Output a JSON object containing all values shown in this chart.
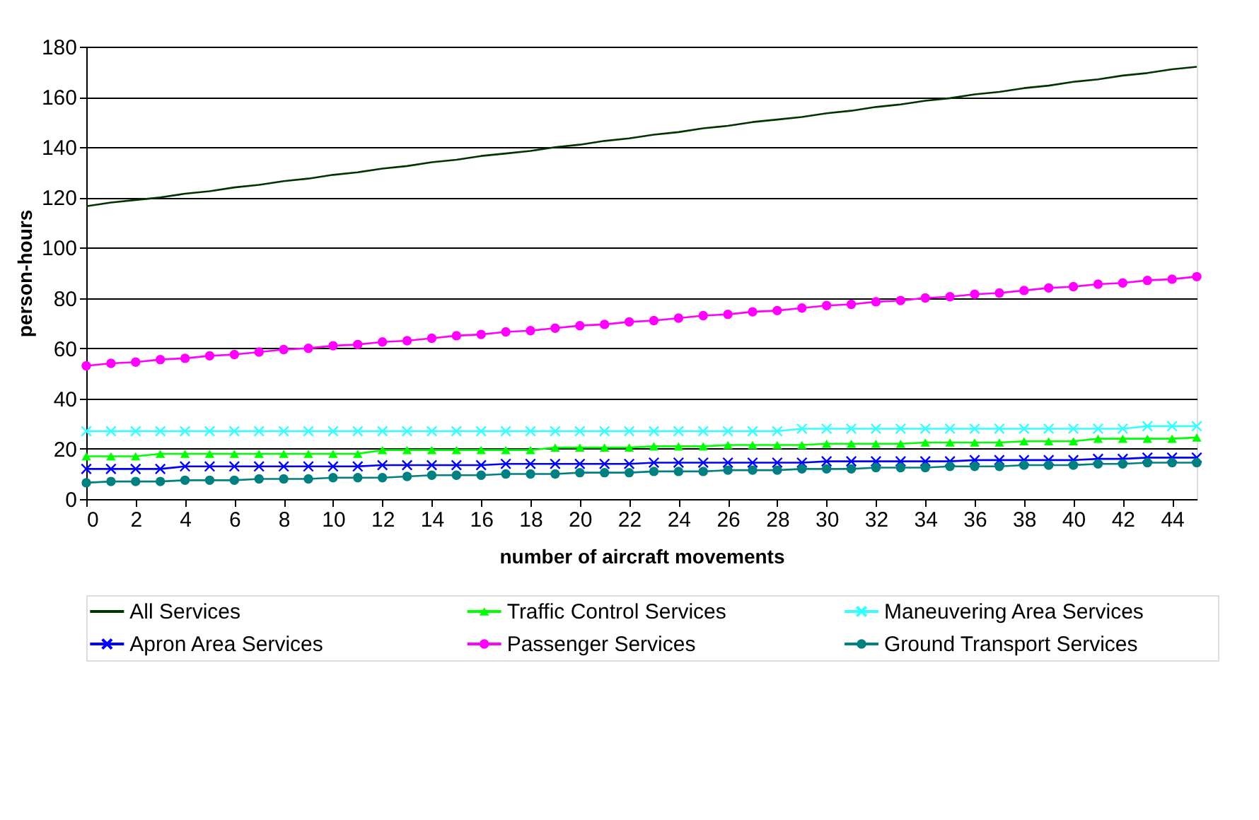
{
  "chart_data": {
    "type": "line",
    "xlabel": "number of aircraft movements",
    "ylabel": "person-hours",
    "x": [
      0,
      1,
      2,
      3,
      4,
      5,
      6,
      7,
      8,
      9,
      10,
      11,
      12,
      13,
      14,
      15,
      16,
      17,
      18,
      19,
      20,
      21,
      22,
      23,
      24,
      25,
      26,
      27,
      28,
      29,
      30,
      31,
      32,
      33,
      34,
      35,
      36,
      37,
      38,
      39,
      40,
      41,
      42,
      43,
      44,
      45
    ],
    "xlim": [
      0,
      45
    ],
    "xticks": [
      0,
      2,
      4,
      6,
      8,
      10,
      12,
      14,
      16,
      18,
      20,
      22,
      24,
      26,
      28,
      30,
      32,
      34,
      36,
      38,
      40,
      42,
      44
    ],
    "ylim": [
      0,
      180
    ],
    "yticks": [
      0,
      20,
      40,
      60,
      80,
      100,
      120,
      140,
      160,
      180
    ],
    "grid": "y",
    "legend": "bottom",
    "line_style": "solid",
    "series": [
      {
        "name": "All Services",
        "color": "#003300",
        "marker": "none",
        "values": [
          116.5,
          118,
          119,
          120,
          121.5,
          122.5,
          124,
          125,
          126.5,
          127.5,
          129,
          130,
          131.5,
          132.5,
          134,
          135,
          136.5,
          137.5,
          138.5,
          140,
          141,
          142.5,
          143.5,
          145,
          146,
          147.5,
          148.5,
          150,
          151,
          152,
          153.5,
          154.5,
          156,
          157,
          158.5,
          159.5,
          161,
          162,
          163.5,
          164.5,
          166,
          167,
          168.5,
          169.5,
          171,
          172
        ]
      },
      {
        "name": "Traffic Control Services",
        "color": "#00ff00",
        "marker": "triangle",
        "values": [
          17,
          17,
          17,
          18,
          18,
          18,
          18,
          18,
          18,
          18,
          18,
          18,
          19.5,
          19.5,
          19.5,
          19.5,
          19.5,
          19.5,
          19.5,
          20.5,
          20.5,
          20.5,
          20.5,
          21,
          21,
          21,
          21.5,
          21.5,
          21.5,
          21.5,
          22,
          22,
          22,
          22,
          22.5,
          22.5,
          22.5,
          22.5,
          23,
          23,
          23,
          24,
          24,
          24,
          24,
          24.5
        ]
      },
      {
        "name": "Maneuvering Area Services",
        "color": "#33ffff",
        "marker": "cross",
        "values": [
          27,
          27,
          27,
          27,
          27,
          27,
          27,
          27,
          27,
          27,
          27,
          27,
          27,
          27,
          27,
          27,
          27,
          27,
          27,
          27,
          27,
          27,
          27,
          27,
          27,
          27,
          27,
          27,
          27,
          28,
          28,
          28,
          28,
          28,
          28,
          28,
          28,
          28,
          28,
          28,
          28,
          28,
          28,
          29,
          29,
          29
        ]
      },
      {
        "name": "Apron Area Services",
        "color": "#0000ff",
        "marker": "cross",
        "values": [
          12,
          12,
          12,
          12,
          13,
          13,
          13,
          13,
          13,
          13,
          13,
          13,
          13.5,
          13.5,
          13.5,
          13.5,
          13.5,
          14,
          14,
          14,
          14,
          14,
          14,
          14.5,
          14.5,
          14.5,
          14.5,
          14.5,
          14.5,
          14.5,
          15,
          15,
          15,
          15,
          15,
          15,
          15.5,
          15.5,
          15.5,
          15.5,
          15.5,
          16,
          16,
          16.5,
          16.5,
          16.5
        ]
      },
      {
        "name": "Passenger Services",
        "color": "#ff00ff",
        "marker": "circle",
        "values": [
          53,
          54,
          54.5,
          55.5,
          56,
          57,
          57.5,
          58.5,
          59.5,
          60,
          61,
          61.5,
          62.5,
          63,
          64,
          65,
          65.5,
          66.5,
          67,
          68,
          69,
          69.5,
          70.5,
          71,
          72,
          73,
          73.5,
          74.5,
          75,
          76,
          77,
          77.5,
          78.5,
          79,
          80,
          80.5,
          81.5,
          82,
          83,
          84,
          84.5,
          85.5,
          86,
          87,
          87.5,
          88.5
        ]
      },
      {
        "name": "Ground Transport Services",
        "color": "#008080",
        "marker": "circle",
        "values": [
          6.5,
          7,
          7,
          7,
          7.5,
          7.5,
          7.5,
          8,
          8,
          8,
          8.5,
          8.5,
          8.5,
          9,
          9.5,
          9.5,
          9.5,
          10,
          10,
          10,
          10.5,
          10.5,
          10.5,
          11,
          11,
          11,
          11.5,
          11.5,
          11.5,
          12,
          12,
          12,
          12.5,
          12.5,
          12.5,
          13,
          13,
          13,
          13.5,
          13.5,
          13.5,
          14,
          14,
          14.5,
          14.5,
          14.5
        ]
      }
    ]
  }
}
